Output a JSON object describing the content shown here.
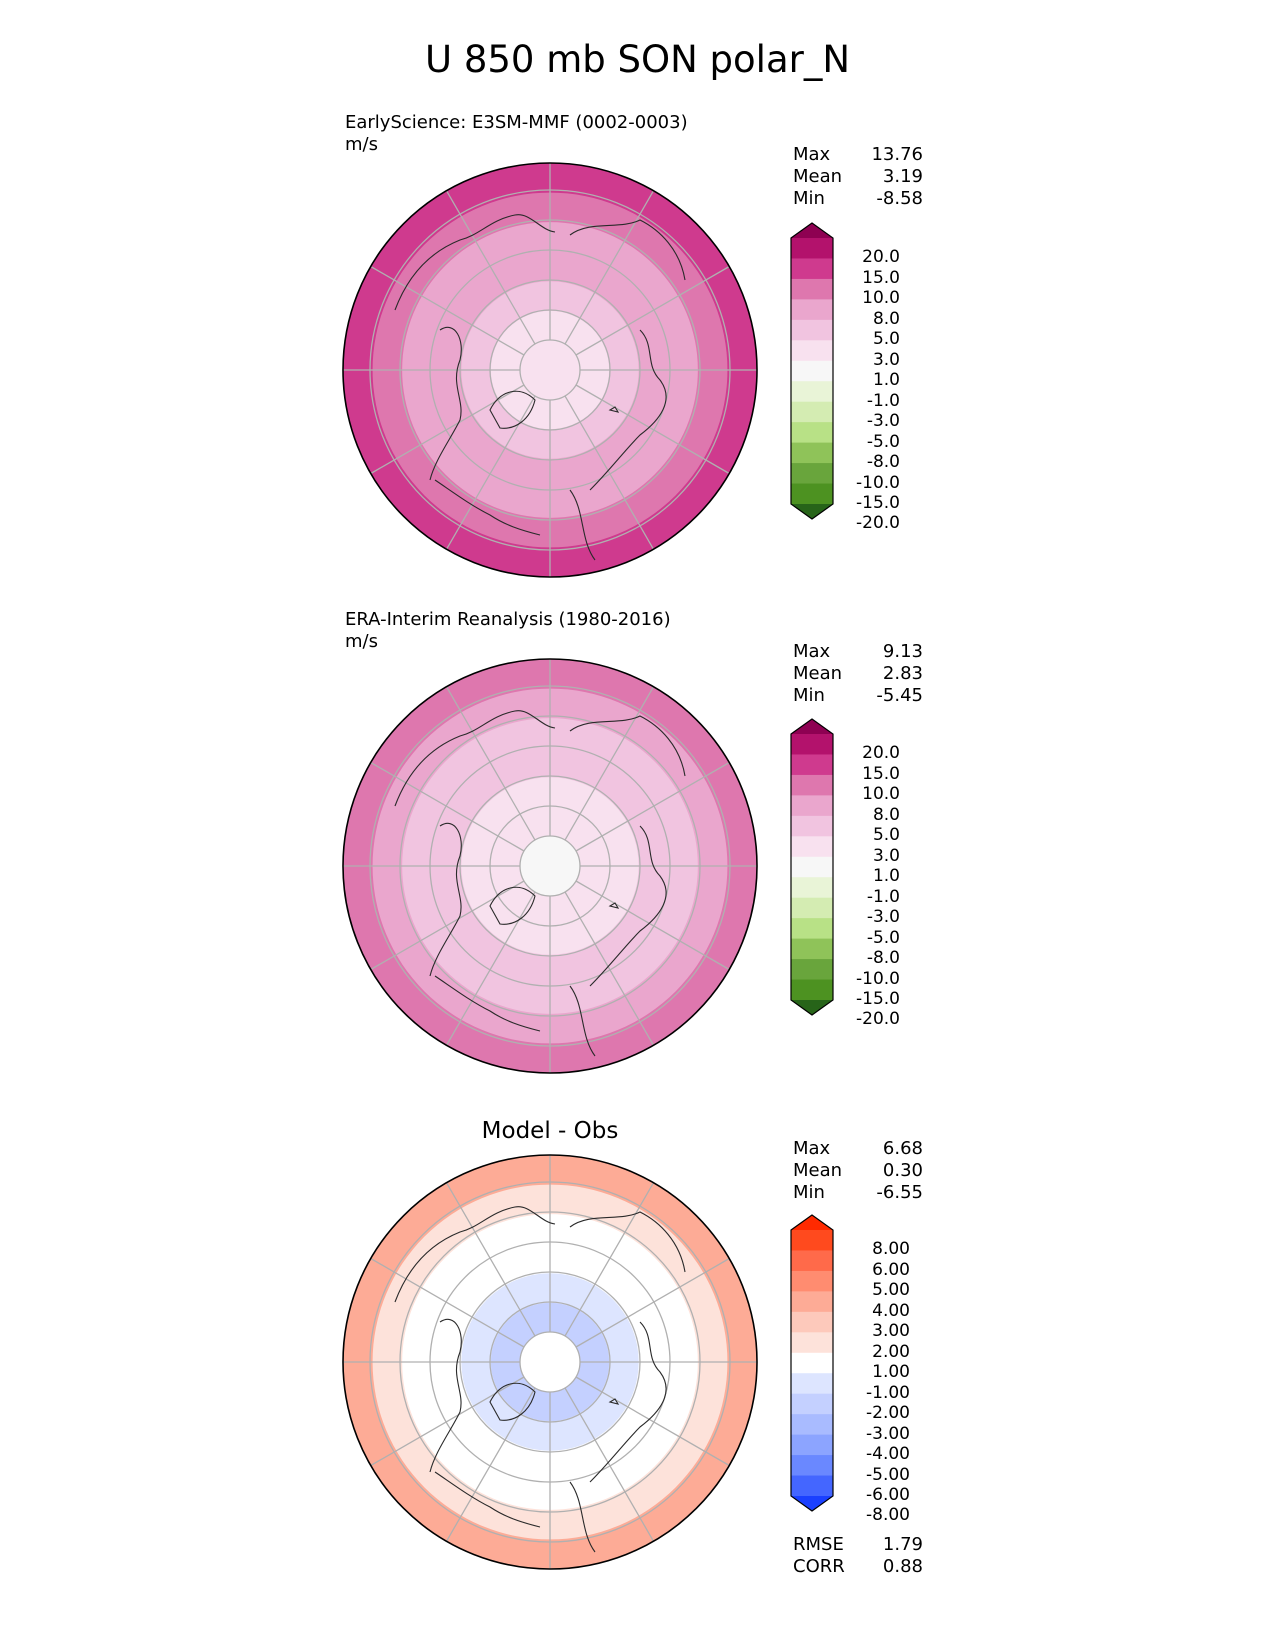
{
  "title": "U 850 mb SON polar_N",
  "chart_data": [
    {
      "type": "heatmap",
      "projection": "north polar stereographic",
      "title": "EarlyScience: E3SM-MMF (0002-0003)",
      "units": "m/s",
      "stats": {
        "Max": "13.76",
        "Mean": "3.19",
        "Min": "-8.58"
      },
      "colorbar": {
        "ticks": [
          "20.0",
          "15.0",
          "10.0",
          "8.0",
          "5.0",
          "3.0",
          "1.0",
          "-1.0",
          "-3.0",
          "-5.0",
          "-8.0",
          "-10.0",
          "-15.0",
          "-20.0"
        ],
        "colors": [
          "#8e0152",
          "#b3126c",
          "#cf3a8e",
          "#de77ae",
          "#eaa6cd",
          "#f1c4e0",
          "#f8e1ef",
          "#f7f7f7",
          "#e9f4d7",
          "#d4ecb2",
          "#b8e186",
          "#8fc359",
          "#69a53c",
          "#4d9221",
          "#276419"
        ]
      },
      "field": {
        "ring_mean": [
          2,
          2,
          3,
          5,
          7,
          9,
          11
        ]
      }
    },
    {
      "type": "heatmap",
      "projection": "north polar stereographic",
      "title": "ERA-Interim Reanalysis (1980-2016)",
      "units": "m/s",
      "stats": {
        "Max": "9.13",
        "Mean": "2.83",
        "Min": "-5.45"
      },
      "colorbar": {
        "ticks": [
          "20.0",
          "15.0",
          "10.0",
          "8.0",
          "5.0",
          "3.0",
          "1.0",
          "-1.0",
          "-3.0",
          "-5.0",
          "-8.0",
          "-10.0",
          "-15.0",
          "-20.0"
        ],
        "colors": [
          "#8e0152",
          "#b3126c",
          "#cf3a8e",
          "#de77ae",
          "#eaa6cd",
          "#f1c4e0",
          "#f8e1ef",
          "#f7f7f7",
          "#e9f4d7",
          "#d4ecb2",
          "#b8e186",
          "#8fc359",
          "#69a53c",
          "#4d9221",
          "#276419"
        ]
      },
      "field": {
        "ring_mean": [
          0,
          1,
          2,
          3,
          4,
          6,
          8
        ]
      }
    },
    {
      "type": "heatmap",
      "projection": "north polar stereographic",
      "title": "Model - Obs",
      "units": "",
      "stats": {
        "Max": "6.68",
        "Mean": "0.30",
        "Min": "-6.55"
      },
      "metrics": {
        "RMSE": "1.79",
        "CORR": "0.88"
      },
      "colorbar": {
        "ticks": [
          "8.00",
          "6.00",
          "5.00",
          "4.00",
          "3.00",
          "2.00",
          "1.00",
          "-1.00",
          "-2.00",
          "-3.00",
          "-4.00",
          "-5.00",
          "-6.00",
          "-8.00"
        ],
        "colors": [
          "#ff2a00",
          "#ff4a1e",
          "#ff6a4a",
          "#ff8c70",
          "#fdab96",
          "#fdc9bb",
          "#fde2da",
          "#ffffff",
          "#dde5ff",
          "#c4d0ff",
          "#a9bbff",
          "#8ca4ff",
          "#6a88ff",
          "#4466ff",
          "#1a40ff"
        ]
      },
      "field": {
        "ring_mean": [
          0,
          -2.5,
          -1.5,
          0,
          0,
          1.5,
          3
        ]
      }
    }
  ]
}
